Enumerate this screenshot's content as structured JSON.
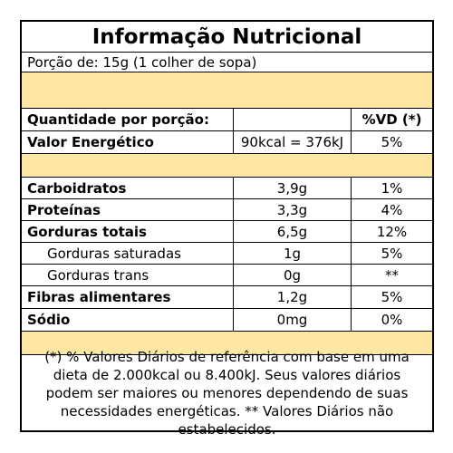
{
  "title": "Informação Nutricional",
  "portion": "Porção de: 15g (1 colher de sopa)",
  "header": {
    "quantity_label": "Quantidade por porção:",
    "vd_label": "%VD (*)"
  },
  "energy": {
    "label": "Valor Energético",
    "value": "90kcal = 376kJ",
    "vd": "5%"
  },
  "nutrients": [
    {
      "label": "Carboidratos",
      "value": "3,9g",
      "vd": "1%"
    },
    {
      "label": "Proteínas",
      "value": "3,3g",
      "vd": "4%"
    },
    {
      "label": "Gorduras totais",
      "value": "6,5g",
      "vd": "12%"
    },
    {
      "label": "Gorduras saturadas",
      "value": "1g",
      "vd": "5%"
    },
    {
      "label": "Gorduras trans",
      "value": "0g",
      "vd": "**"
    },
    {
      "label": "Fibras alimentares",
      "value": "1,2g",
      "vd": "5%"
    },
    {
      "label": "Sódio",
      "value": "0mg",
      "vd": "0%"
    }
  ],
  "footnote": "(*) % Valores Diários de referência com base em uma dieta de 2.000kcal ou 8.400kJ. Seus valores diários podem ser maiores ou menores dependendo de suas necessidades energéticas. ** Valores Diários não estabelecidos.",
  "colors": {
    "band": "#fde7a3",
    "border": "#000000"
  }
}
